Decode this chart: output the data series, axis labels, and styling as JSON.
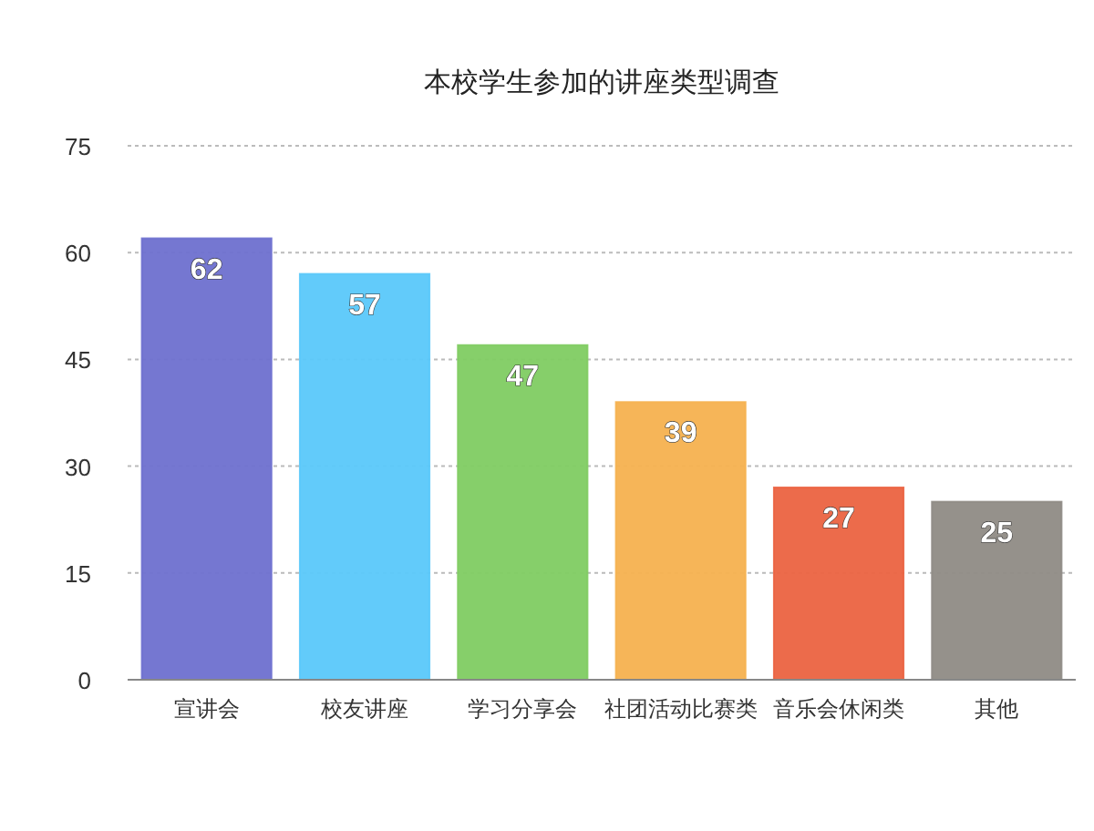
{
  "chart_data": {
    "type": "bar",
    "title": "本校学生参加的讲座类型调查",
    "categories": [
      "宣讲会",
      "校友讲座",
      "学习分享会",
      "社团活动比赛类",
      "音乐会休闲类",
      "其他"
    ],
    "values": [
      62,
      57,
      47,
      39,
      27,
      25
    ],
    "colors": [
      "#6e70cf",
      "#5ac8fa",
      "#80cc62",
      "#f5b14f",
      "#eb6341",
      "#8f8b85"
    ],
    "ylim": [
      0,
      75
    ],
    "yticks": [
      0,
      15,
      30,
      45,
      60,
      75
    ],
    "grid": "y",
    "data_labels": true
  }
}
